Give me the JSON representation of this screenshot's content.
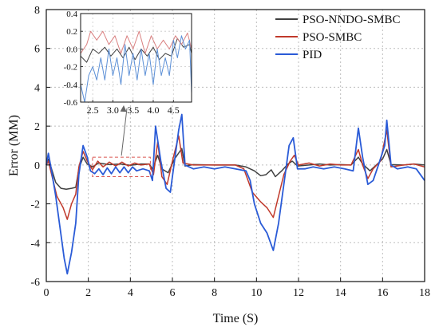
{
  "chart_data": [
    {
      "type": "line",
      "xlabel": "Time (S)",
      "ylabel": "Error (MM)",
      "xlim": [
        0,
        18
      ],
      "ylim": [
        -6,
        8
      ],
      "xticks": [
        0,
        2,
        4,
        6,
        8,
        10,
        12,
        14,
        16,
        18
      ],
      "yticks": [
        -6,
        -4,
        -2,
        0,
        2,
        4,
        6,
        8
      ],
      "grid": true,
      "legend_position": "top-right",
      "series": [
        {
          "name": "PSO-NNDO-SMBC",
          "color": "#404040",
          "points": [
            [
              0,
              0
            ],
            [
              0.1,
              0.3
            ],
            [
              0.25,
              -0.2
            ],
            [
              0.45,
              -0.9
            ],
            [
              0.7,
              -1.2
            ],
            [
              0.95,
              -1.25
            ],
            [
              1.2,
              -1.2
            ],
            [
              1.4,
              -1.15
            ],
            [
              1.55,
              -0.2
            ],
            [
              1.75,
              0.4
            ],
            [
              1.95,
              0.05
            ],
            [
              2.2,
              -0.1
            ],
            [
              2.5,
              0.1
            ],
            [
              3.0,
              0.02
            ],
            [
              3.5,
              0.05
            ],
            [
              4.0,
              -0.02
            ],
            [
              4.5,
              0.05
            ],
            [
              4.9,
              0.05
            ],
            [
              5.05,
              -0.2
            ],
            [
              5.3,
              0.5
            ],
            [
              5.5,
              -0.2
            ],
            [
              5.8,
              -0.4
            ],
            [
              6.1,
              0.3
            ],
            [
              6.45,
              0.85
            ],
            [
              6.6,
              -0.05
            ],
            [
              7.0,
              0.02
            ],
            [
              8.0,
              0
            ],
            [
              9.0,
              0
            ],
            [
              9.5,
              -0.1
            ],
            [
              9.9,
              -0.3
            ],
            [
              10.2,
              -0.55
            ],
            [
              10.45,
              -0.5
            ],
            [
              10.7,
              -0.25
            ],
            [
              10.9,
              -0.6
            ],
            [
              11.2,
              -0.3
            ],
            [
              11.5,
              0.05
            ],
            [
              11.7,
              0.2
            ],
            [
              11.95,
              -0.05
            ],
            [
              12.5,
              0
            ],
            [
              13.0,
              0.05
            ],
            [
              13.5,
              0
            ],
            [
              14.0,
              0.02
            ],
            [
              14.5,
              0
            ],
            [
              14.85,
              0.4
            ],
            [
              15.05,
              0.05
            ],
            [
              15.4,
              -0.3
            ],
            [
              15.7,
              0
            ],
            [
              16.0,
              0.3
            ],
            [
              16.2,
              0.8
            ],
            [
              16.4,
              0.02
            ],
            [
              17.0,
              0
            ],
            [
              17.5,
              0.05
            ],
            [
              18.0,
              0
            ]
          ]
        },
        {
          "name": "PSO-SMBC",
          "color": "#c0392b",
          "points": [
            [
              0,
              0
            ],
            [
              0.1,
              0.2
            ],
            [
              0.3,
              -0.7
            ],
            [
              0.5,
              -1.6
            ],
            [
              0.8,
              -2.2
            ],
            [
              1.0,
              -2.8
            ],
            [
              1.2,
              -2.0
            ],
            [
              1.4,
              -1.5
            ],
            [
              1.55,
              -0.1
            ],
            [
              1.75,
              0.7
            ],
            [
              1.95,
              0.2
            ],
            [
              2.2,
              -0.25
            ],
            [
              2.45,
              0.2
            ],
            [
              2.7,
              -0.1
            ],
            [
              3.0,
              0.15
            ],
            [
              3.3,
              -0.05
            ],
            [
              3.6,
              0.15
            ],
            [
              3.9,
              -0.05
            ],
            [
              4.2,
              0.1
            ],
            [
              4.5,
              0
            ],
            [
              4.9,
              0.05
            ],
            [
              5.1,
              -0.5
            ],
            [
              5.3,
              1.2
            ],
            [
              5.5,
              -0.6
            ],
            [
              5.75,
              -1.0
            ],
            [
              6.0,
              0.2
            ],
            [
              6.3,
              1.5
            ],
            [
              6.5,
              0.1
            ],
            [
              7.0,
              0
            ],
            [
              8.0,
              0
            ],
            [
              9.0,
              0
            ],
            [
              9.4,
              -0.2
            ],
            [
              9.8,
              -1.4
            ],
            [
              10.2,
              -1.9
            ],
            [
              10.5,
              -2.2
            ],
            [
              10.8,
              -2.7
            ],
            [
              11.05,
              -1.6
            ],
            [
              11.3,
              -0.5
            ],
            [
              11.6,
              0.2
            ],
            [
              11.8,
              0.5
            ],
            [
              12.0,
              0
            ],
            [
              12.5,
              0.1
            ],
            [
              13.0,
              -0.05
            ],
            [
              13.5,
              0.05
            ],
            [
              14.0,
              0
            ],
            [
              14.5,
              0
            ],
            [
              14.85,
              0.8
            ],
            [
              15.05,
              0
            ],
            [
              15.3,
              -0.7
            ],
            [
              15.55,
              -0.2
            ],
            [
              15.9,
              0.2
            ],
            [
              16.2,
              1.8
            ],
            [
              16.4,
              -0.1
            ],
            [
              17.0,
              0
            ],
            [
              17.5,
              0.05
            ],
            [
              18.0,
              -0.1
            ]
          ]
        },
        {
          "name": "PID",
          "color": "#2a5bd7",
          "points": [
            [
              0,
              0
            ],
            [
              0.1,
              0.6
            ],
            [
              0.25,
              -0.3
            ],
            [
              0.45,
              -1.6
            ],
            [
              0.65,
              -3.2
            ],
            [
              0.85,
              -4.8
            ],
            [
              1.0,
              -5.6
            ],
            [
              1.2,
              -4.5
            ],
            [
              1.4,
              -3.0
            ],
            [
              1.55,
              -0.5
            ],
            [
              1.75,
              1.0
            ],
            [
              1.95,
              0.4
            ],
            [
              2.1,
              -0.3
            ],
            [
              2.3,
              -0.45
            ],
            [
              2.5,
              -0.2
            ],
            [
              2.7,
              -0.5
            ],
            [
              2.9,
              -0.15
            ],
            [
              3.1,
              -0.45
            ],
            [
              3.3,
              -0.1
            ],
            [
              3.5,
              -0.4
            ],
            [
              3.7,
              -0.1
            ],
            [
              3.9,
              -0.4
            ],
            [
              4.1,
              -0.1
            ],
            [
              4.3,
              -0.3
            ],
            [
              4.6,
              -0.2
            ],
            [
              4.9,
              -0.3
            ],
            [
              5.05,
              -0.8
            ],
            [
              5.2,
              2.0
            ],
            [
              5.45,
              0.2
            ],
            [
              5.7,
              -1.2
            ],
            [
              5.9,
              -1.4
            ],
            [
              6.05,
              -0.2
            ],
            [
              6.3,
              1.8
            ],
            [
              6.45,
              2.6
            ],
            [
              6.6,
              0
            ],
            [
              7.0,
              -0.2
            ],
            [
              7.5,
              -0.1
            ],
            [
              8.0,
              -0.2
            ],
            [
              8.5,
              -0.1
            ],
            [
              9.0,
              -0.2
            ],
            [
              9.5,
              -0.3
            ],
            [
              9.7,
              -0.8
            ],
            [
              9.9,
              -2.0
            ],
            [
              10.2,
              -3.0
            ],
            [
              10.5,
              -3.5
            ],
            [
              10.8,
              -4.4
            ],
            [
              11.05,
              -3.0
            ],
            [
              11.3,
              -1.0
            ],
            [
              11.55,
              1.0
            ],
            [
              11.75,
              1.4
            ],
            [
              11.95,
              -0.2
            ],
            [
              12.3,
              -0.2
            ],
            [
              12.7,
              -0.1
            ],
            [
              13.2,
              -0.2
            ],
            [
              13.7,
              -0.1
            ],
            [
              14.2,
              -0.2
            ],
            [
              14.6,
              -0.3
            ],
            [
              14.85,
              1.9
            ],
            [
              15.05,
              0.4
            ],
            [
              15.3,
              -1.0
            ],
            [
              15.55,
              -0.8
            ],
            [
              15.8,
              0
            ],
            [
              16.1,
              1.0
            ],
            [
              16.2,
              2.3
            ],
            [
              16.4,
              0
            ],
            [
              16.7,
              -0.2
            ],
            [
              17.2,
              -0.1
            ],
            [
              17.6,
              -0.2
            ],
            [
              18.0,
              -0.8
            ]
          ]
        }
      ]
    },
    {
      "type": "line",
      "subtitle": "",
      "xlim": [
        2.2,
        4.95
      ],
      "ylim": [
        -0.6,
        0.4
      ],
      "xticks": [
        2.5,
        3.0,
        3.5,
        4.0,
        4.5
      ],
      "yticks": [
        -0.6,
        -0.4,
        -0.2,
        0.0,
        0.2,
        0.4
      ],
      "grid": true,
      "series": [
        {
          "name": "PSO-NNDO-SMBC",
          "color": "#404040",
          "points": [
            [
              2.2,
              -0.08
            ],
            [
              2.35,
              -0.15
            ],
            [
              2.5,
              0.0
            ],
            [
              2.65,
              -0.05
            ],
            [
              2.8,
              0.02
            ],
            [
              2.95,
              -0.08
            ],
            [
              3.1,
              0.0
            ],
            [
              3.25,
              -0.1
            ],
            [
              3.4,
              0.02
            ],
            [
              3.55,
              -0.12
            ],
            [
              3.7,
              0.0
            ],
            [
              3.85,
              -0.08
            ],
            [
              4.0,
              0.02
            ],
            [
              4.15,
              -0.12
            ],
            [
              4.3,
              -0.05
            ],
            [
              4.45,
              -0.08
            ],
            [
              4.6,
              0.12
            ],
            [
              4.75,
              0.02
            ],
            [
              4.9,
              0.05
            ],
            [
              4.95,
              -0.05
            ]
          ]
        },
        {
          "name": "PSO-SMBC",
          "color": "#d98080",
          "points": [
            [
              2.2,
              -0.05
            ],
            [
              2.35,
              0.05
            ],
            [
              2.45,
              0.2
            ],
            [
              2.6,
              0.1
            ],
            [
              2.75,
              0.2
            ],
            [
              2.9,
              0.05
            ],
            [
              3.05,
              0.15
            ],
            [
              3.2,
              -0.05
            ],
            [
              3.35,
              0.15
            ],
            [
              3.5,
              0.0
            ],
            [
              3.65,
              0.2
            ],
            [
              3.8,
              -0.05
            ],
            [
              3.95,
              0.15
            ],
            [
              4.1,
              0.0
            ],
            [
              4.25,
              0.1
            ],
            [
              4.4,
              0.0
            ],
            [
              4.55,
              0.15
            ],
            [
              4.7,
              0.05
            ],
            [
              4.85,
              0.18
            ],
            [
              4.95,
              0.0
            ]
          ]
        },
        {
          "name": "PID",
          "color": "#5b8fd6",
          "points": [
            [
              2.2,
              -0.4
            ],
            [
              2.3,
              -0.6
            ],
            [
              2.4,
              -0.3
            ],
            [
              2.5,
              -0.2
            ],
            [
              2.6,
              -0.35
            ],
            [
              2.7,
              -0.1
            ],
            [
              2.8,
              -0.35
            ],
            [
              2.9,
              0.0
            ],
            [
              3.0,
              -0.3
            ],
            [
              3.1,
              -0.1
            ],
            [
              3.2,
              -0.4
            ],
            [
              3.3,
              0.05
            ],
            [
              3.4,
              -0.3
            ],
            [
              3.5,
              -0.05
            ],
            [
              3.6,
              -0.35
            ],
            [
              3.7,
              0.0
            ],
            [
              3.8,
              -0.3
            ],
            [
              3.9,
              -0.05
            ],
            [
              4.0,
              -0.4
            ],
            [
              4.1,
              0.0
            ],
            [
              4.2,
              -0.3
            ],
            [
              4.3,
              -0.1
            ],
            [
              4.4,
              -0.3
            ],
            [
              4.5,
              0.1
            ],
            [
              4.6,
              -0.1
            ],
            [
              4.7,
              0.15
            ],
            [
              4.8,
              0.0
            ],
            [
              4.9,
              0.1
            ],
            [
              4.95,
              -0.5
            ]
          ]
        }
      ]
    }
  ]
}
